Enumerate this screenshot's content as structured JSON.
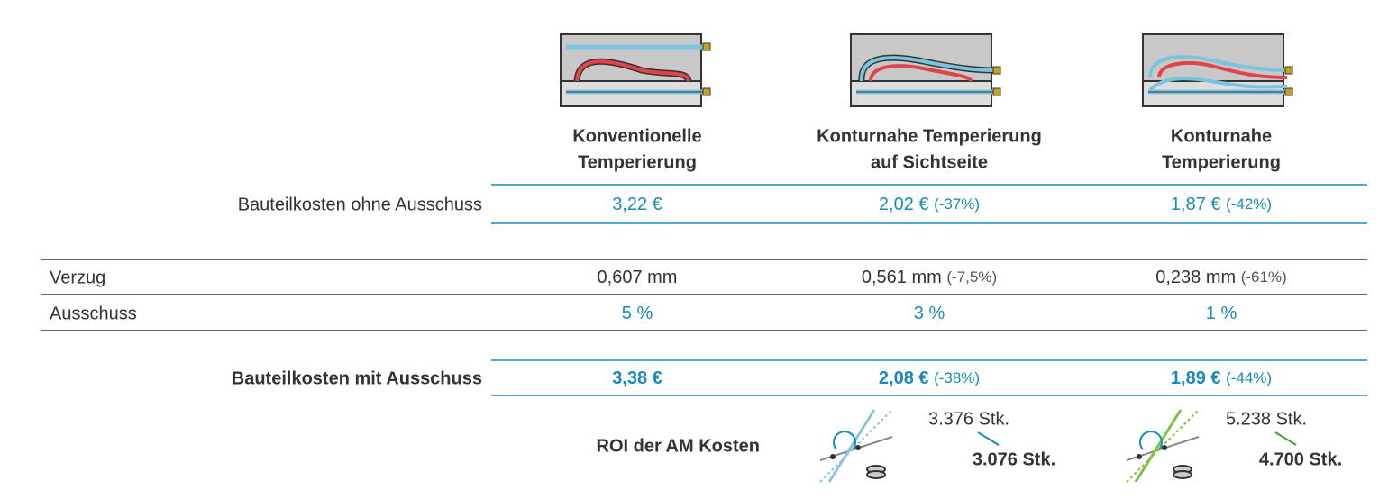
{
  "columns": [
    {
      "title": [
        "Konventionelle",
        "Temperierung"
      ]
    },
    {
      "title": [
        "Konturnahe Temperierung",
        "auf Sichtseite"
      ]
    },
    {
      "title": [
        "Konturnahe",
        "Temperierung"
      ]
    }
  ],
  "rows": [
    {
      "label": "Bauteilkosten ohne Ausschuss",
      "cells": [
        {
          "value": "3,22 €"
        },
        {
          "value": "2,02 €",
          "change": "(-37%)"
        },
        {
          "value": "1,87 €",
          "change": "(-42%)"
        }
      ]
    },
    {
      "label": "Verzug",
      "cells": [
        {
          "value": "0,607 mm"
        },
        {
          "value": "0,561 mm",
          "change": "(-7,5%)"
        },
        {
          "value": "0,238 mm",
          "change": "(-61%)"
        }
      ]
    },
    {
      "label": "Ausschuss",
      "cells": [
        {
          "value": "5 %"
        },
        {
          "value": "3 %"
        },
        {
          "value": "1 %"
        }
      ]
    },
    {
      "label": "Bauteilkosten mit Ausschuss",
      "cells": [
        {
          "value": "3,38 €"
        },
        {
          "value": "2,08 €",
          "change": "(-38%)"
        },
        {
          "value": "1,89 €",
          "change": "(-44%)"
        }
      ]
    }
  ],
  "roi": {
    "label": "ROI der AM Kosten",
    "cells": [
      {
        "from": "3.376 Stk.",
        "to": "3.076 Stk."
      },
      {
        "from": "5.238 Stk.",
        "to": "4.700 Stk."
      }
    ]
  }
}
